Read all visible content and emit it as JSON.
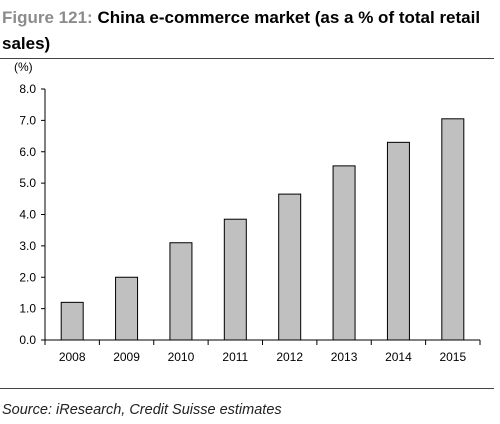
{
  "header": {
    "figure_label": "Figure 121:",
    "title": "China e-commerce market (as a % of total retail sales)"
  },
  "chart_data": {
    "type": "bar",
    "unit_label": "(%)",
    "categories": [
      "2008",
      "2009",
      "2010",
      "2011",
      "2012",
      "2013",
      "2014",
      "2015"
    ],
    "values": [
      1.2,
      2.0,
      3.1,
      3.85,
      4.65,
      5.55,
      6.3,
      7.05
    ],
    "ylim": [
      0,
      8
    ],
    "yticks": [
      "0.0",
      "1.0",
      "2.0",
      "3.0",
      "4.0",
      "5.0",
      "6.0",
      "7.0",
      "8.0"
    ],
    "bar_color": "#c0c0c0",
    "grid": false
  },
  "footer": {
    "source": "Source: iResearch, Credit Suisse estimates"
  }
}
